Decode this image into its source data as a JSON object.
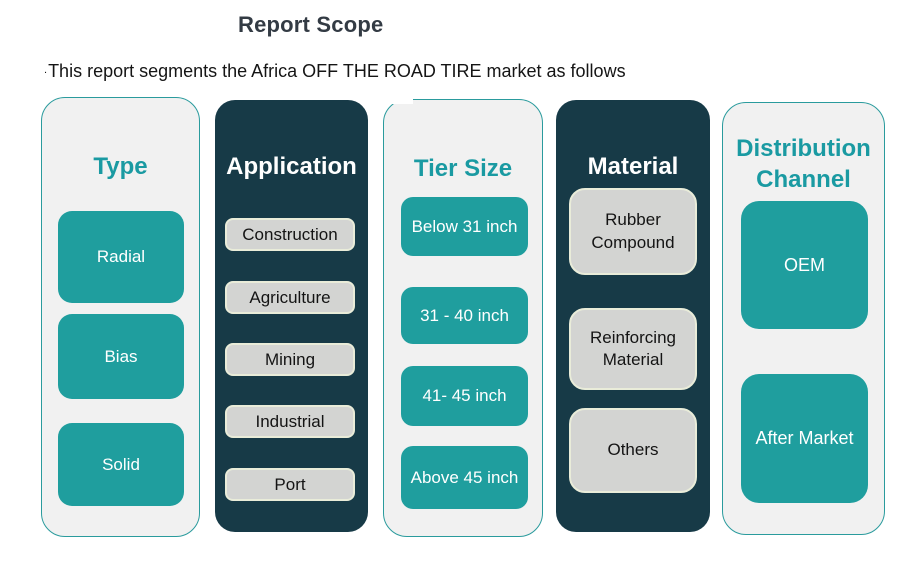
{
  "header": {
    "title": "Report Scope",
    "bullet": ".",
    "subtitle": "This report segments the Africa OFF THE ROAD TIRE market as follows"
  },
  "columns": [
    {
      "title": "Type",
      "theme": "light",
      "items": [
        "Radial",
        "Bias",
        "Solid"
      ]
    },
    {
      "title": "Application",
      "theme": "dark",
      "items": [
        "Construction",
        "Agriculture",
        "Mining",
        "Industrial",
        "Port"
      ]
    },
    {
      "title": "Tier Size",
      "theme": "light",
      "items": [
        "Below 31 inch",
        "31 - 40 inch",
        "41- 45 inch",
        "Above 45 inch"
      ]
    },
    {
      "title": "Material",
      "theme": "dark",
      "items": [
        "Rubber Compound",
        "Reinforcing Material",
        "Others"
      ]
    },
    {
      "title": "Distribution Channel",
      "theme": "light",
      "items": [
        "OEM",
        "After Market"
      ]
    }
  ],
  "colors": {
    "teal_button": "#1f9e9e",
    "teal_heading": "#1a9aa2",
    "dark_panel": "#173a47",
    "light_panel_bg": "#f1f1f1",
    "light_panel_border": "#2a9b9d",
    "gray_button_bg": "#d3d4d2",
    "gray_button_border": "#e9ecd9",
    "title_color": "#333b44"
  }
}
